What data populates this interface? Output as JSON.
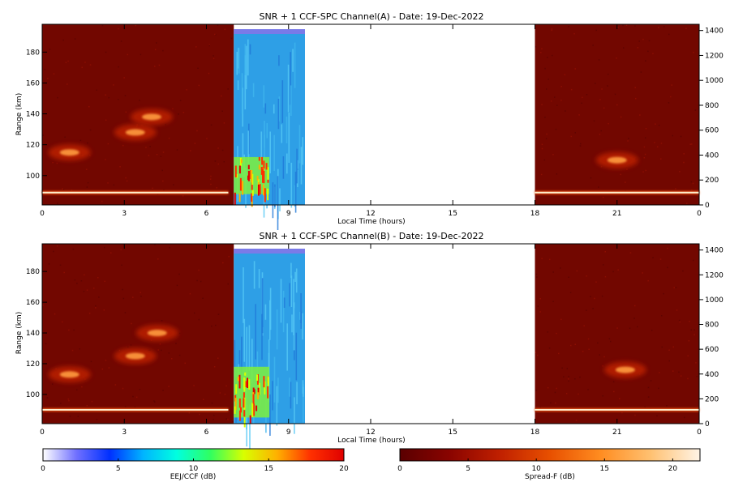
{
  "chart_data": [
    {
      "type": "heatmap",
      "title": "SNR + 1 CCF-SPC Channel(A) - Date: 19-Dec-2022",
      "xlabel": "Local Time (hours)",
      "ylabel": "Range (km)",
      "xlim": [
        0,
        24
      ],
      "ylim": [
        81,
        198
      ],
      "y2lim": [
        0,
        1450
      ],
      "x_ticks": [
        "0",
        "3",
        "6",
        "9",
        "12",
        "15",
        "18",
        "21",
        "0"
      ],
      "y_ticks": [
        "100",
        "120",
        "140",
        "160",
        "180"
      ],
      "y2_ticks": [
        "0",
        "200",
        "400",
        "600",
        "800",
        "1000",
        "1200",
        "1400"
      ],
      "segments": [
        {
          "kind": "spread-f",
          "x_start": 0.0,
          "x_end": 7.0
        },
        {
          "kind": "eej-ccf",
          "x_start": 7.0,
          "x_end": 9.6
        },
        {
          "kind": "spread-f",
          "x_start": 18.0,
          "x_end": 24.0
        }
      ],
      "features": [
        {
          "kind": "thin-layer",
          "x_start": 0.0,
          "x_end": 6.8,
          "range_km": 89
        },
        {
          "kind": "thin-layer",
          "x_start": 18.0,
          "x_end": 24.0,
          "range_km": 89
        },
        {
          "kind": "blob",
          "x_center": 4.0,
          "range_km": 138
        },
        {
          "kind": "blob",
          "x_center": 3.4,
          "range_km": 128
        },
        {
          "kind": "blob",
          "x_center": 1.0,
          "range_km": 115
        },
        {
          "kind": "blob",
          "x_center": 21.0,
          "range_km": 110
        },
        {
          "kind": "eej-core",
          "x_start": 7.0,
          "x_end": 8.3,
          "range_km_low": 88,
          "range_km_high": 112
        }
      ]
    },
    {
      "type": "heatmap",
      "title": "SNR + 1 CCF-SPC Channel(B) - Date: 19-Dec-2022",
      "xlabel": "Local Time (hours)",
      "ylabel": "Range (km)",
      "xlim": [
        0,
        24
      ],
      "ylim": [
        81,
        198
      ],
      "y2lim": [
        0,
        1450
      ],
      "x_ticks": [
        "0",
        "3",
        "6",
        "9",
        "12",
        "15",
        "18",
        "21",
        "0"
      ],
      "y_ticks": [
        "100",
        "120",
        "140",
        "160",
        "180"
      ],
      "y2_ticks": [
        "0",
        "200",
        "400",
        "600",
        "800",
        "1000",
        "1200",
        "1400"
      ],
      "segments": [
        {
          "kind": "spread-f",
          "x_start": 0.0,
          "x_end": 7.0
        },
        {
          "kind": "eej-ccf",
          "x_start": 7.0,
          "x_end": 9.6
        },
        {
          "kind": "spread-f",
          "x_start": 18.0,
          "x_end": 24.0
        }
      ],
      "features": [
        {
          "kind": "thin-layer",
          "x_start": 0.0,
          "x_end": 6.8,
          "range_km": 90
        },
        {
          "kind": "thin-layer",
          "x_start": 18.0,
          "x_end": 24.0,
          "range_km": 90
        },
        {
          "kind": "blob",
          "x_center": 4.2,
          "range_km": 140
        },
        {
          "kind": "blob",
          "x_center": 3.4,
          "range_km": 125
        },
        {
          "kind": "blob",
          "x_center": 1.0,
          "range_km": 113
        },
        {
          "kind": "blob",
          "x_center": 21.3,
          "range_km": 116
        },
        {
          "kind": "eej-core",
          "x_start": 7.0,
          "x_end": 8.3,
          "range_km_low": 85,
          "range_km_high": 118
        }
      ]
    }
  ],
  "colorbars": [
    {
      "label": "EEJ/CCF (dB)",
      "ticks": [
        "0",
        "5",
        "10",
        "15",
        "20"
      ],
      "range": [
        0,
        20
      ],
      "colors": [
        "#ffffff",
        "#7070ff",
        "#0030ff",
        "#00b4ff",
        "#00ffe0",
        "#30ff60",
        "#d8ff00",
        "#ffb000",
        "#ff3000",
        "#e00000"
      ]
    },
    {
      "label": "Spread-F (dB)",
      "ticks": [
        "0",
        "5",
        "10",
        "15",
        "20"
      ],
      "range": [
        0,
        22
      ],
      "colors": [
        "#5a0000",
        "#8a0400",
        "#c02000",
        "#e85000",
        "#ff8c20",
        "#ffc070",
        "#fff4e6"
      ]
    }
  ],
  "colors": {
    "spread_bg": "#720700",
    "eej_bg": "#2e9fe6"
  }
}
